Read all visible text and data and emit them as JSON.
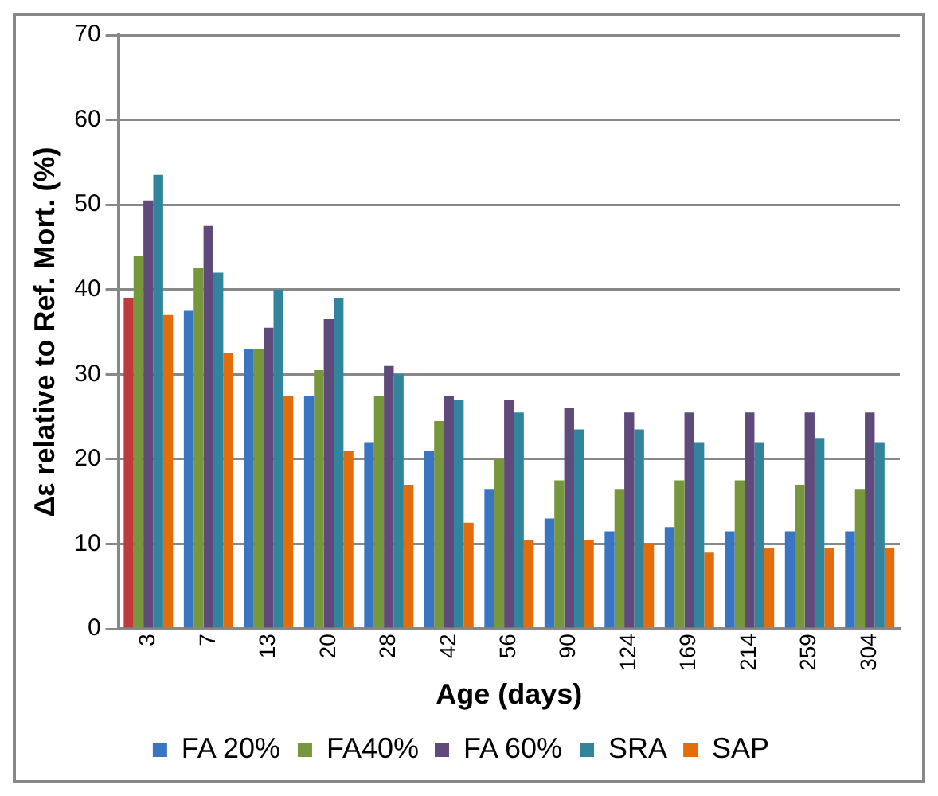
{
  "chart_data": {
    "type": "bar",
    "xlabel": "Age (days)",
    "ylabel": "Δε relative to Ref. Mort. (%)",
    "categories": [
      "3",
      "7",
      "13",
      "20",
      "28",
      "42",
      "56",
      "90",
      "124",
      "169",
      "214",
      "259",
      "304"
    ],
    "series": [
      {
        "name": "FA 20%",
        "color": "#3a75c4",
        "colors": [
          "#c0393b",
          "#3a75c4",
          "#3a75c4",
          "#3a75c4",
          "#3a75c4",
          "#3a75c4",
          "#3a75c4",
          "#3a75c4",
          "#3a75c4",
          "#3a75c4",
          "#3a75c4",
          "#3a75c4",
          "#3a75c4"
        ],
        "values": [
          39,
          37.5,
          33,
          27.5,
          22,
          21,
          16.5,
          13,
          11.5,
          12,
          11.5,
          11.5,
          11.5
        ]
      },
      {
        "name": "FA40%",
        "color": "#77973d",
        "values": [
          44,
          42.5,
          33,
          30.5,
          27.5,
          24.5,
          20,
          17.5,
          16.5,
          17.5,
          17.5,
          17,
          16.5
        ]
      },
      {
        "name": "FA 60%",
        "color": "#604a7b",
        "values": [
          50.5,
          47.5,
          35.5,
          36.5,
          31,
          27.5,
          27,
          26,
          25.5,
          25.5,
          25.5,
          25.5,
          25.5
        ]
      },
      {
        "name": "SRA",
        "color": "#31849b",
        "values": [
          53.5,
          42,
          40,
          39,
          30,
          27,
          25.5,
          23.5,
          23.5,
          22,
          22,
          22.5,
          22
        ]
      },
      {
        "name": "SAP",
        "color": "#e46c0a",
        "values": [
          37,
          32.5,
          27.5,
          21,
          17,
          12.5,
          10.5,
          10.5,
          10,
          9,
          9.5,
          9.5,
          9.5
        ]
      }
    ],
    "ylim": [
      0,
      70
    ],
    "yticks": [
      0,
      10,
      20,
      30,
      40,
      50,
      60,
      70
    ],
    "grid": "y",
    "legend": "bottom"
  }
}
